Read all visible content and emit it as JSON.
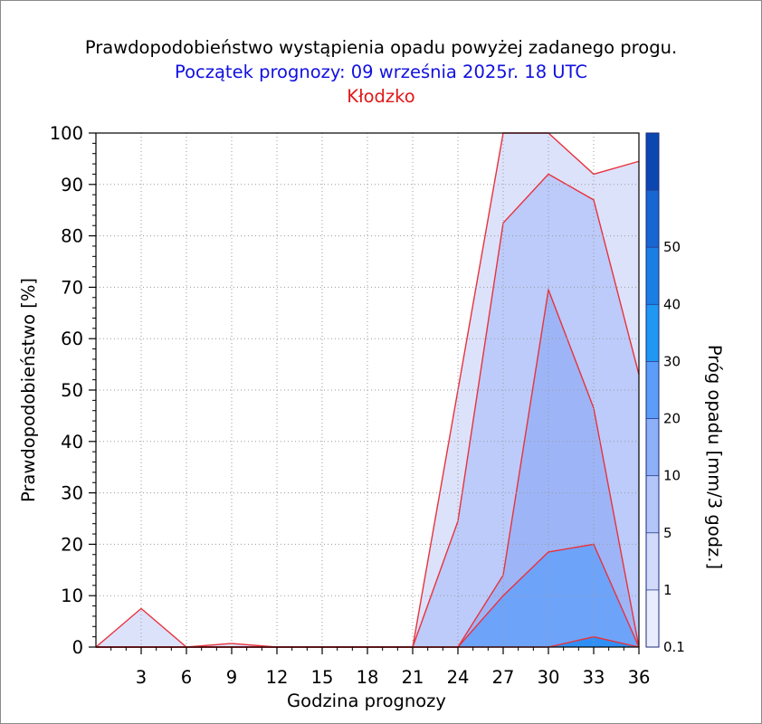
{
  "chart_data": {
    "type": "area",
    "title": "Prawdopodobieństwo wystąpienia opadu powyżej zadanego progu.",
    "subtitle": "Początek prognozy: 09 września 2025r. 18 UTC",
    "location": "Kłodzko",
    "xlabel": "Godzina prognozy",
    "ylabel": "Prawdopodobieństwo [%]",
    "colorbar_label": "Próg opadu [mm/3 godz.]",
    "x": [
      0,
      3,
      6,
      9,
      12,
      15,
      18,
      21,
      24,
      27,
      30,
      33,
      36
    ],
    "x_ticks": [
      "3",
      "6",
      "9",
      "12",
      "15",
      "18",
      "21",
      "24",
      "27",
      "30",
      "33",
      "36"
    ],
    "y_ticks": [
      "0",
      "10",
      "20",
      "30",
      "40",
      "50",
      "60",
      "70",
      "80",
      "90",
      "100"
    ],
    "ylim": [
      0,
      100
    ],
    "xlim": [
      0,
      36
    ],
    "grid": true,
    "thresholds": [
      "0.1",
      "1",
      "5",
      "10",
      "20",
      "30",
      "40",
      "50"
    ],
    "series": [
      {
        "name": "0.1",
        "color": "#dde2fb",
        "values": [
          0,
          7.5,
          0,
          0.7,
          0,
          0,
          0,
          0,
          50,
          100,
          100,
          92,
          94.5
        ]
      },
      {
        "name": "1",
        "color": "#bccbfa",
        "values": [
          0,
          0,
          0,
          0,
          0,
          0,
          0,
          0,
          24.5,
          82.5,
          92,
          87,
          53
        ]
      },
      {
        "name": "5",
        "color": "#9db5f7",
        "values": [
          0,
          0,
          0,
          0,
          0,
          0,
          0,
          0,
          0,
          14,
          69.5,
          46.5,
          0
        ]
      },
      {
        "name": "10",
        "color": "#6ea3fa",
        "values": [
          0,
          0,
          0,
          0,
          0,
          0,
          0,
          0,
          0,
          10,
          18.5,
          20,
          0
        ]
      },
      {
        "name": "20",
        "color": "#2f8ff5",
        "values": [
          0,
          0,
          0,
          0,
          0,
          0,
          0,
          0,
          0,
          0,
          0,
          2,
          0
        ]
      }
    ],
    "colorbar": [
      {
        "label": "0.1",
        "color": "#e9ecfd"
      },
      {
        "label": "1",
        "color": "#d2dafb"
      },
      {
        "label": "5",
        "color": "#b4c5f9"
      },
      {
        "label": "10",
        "color": "#8db0f8"
      },
      {
        "label": "20",
        "color": "#5b9df8"
      },
      {
        "label": "30",
        "color": "#1e98f3"
      },
      {
        "label": "40",
        "color": "#1a7fe4"
      },
      {
        "label": "50",
        "color": "#1766d1"
      },
      {
        "label": "",
        "color": "#0a47b0"
      }
    ],
    "outline_color": "#e8323c"
  }
}
